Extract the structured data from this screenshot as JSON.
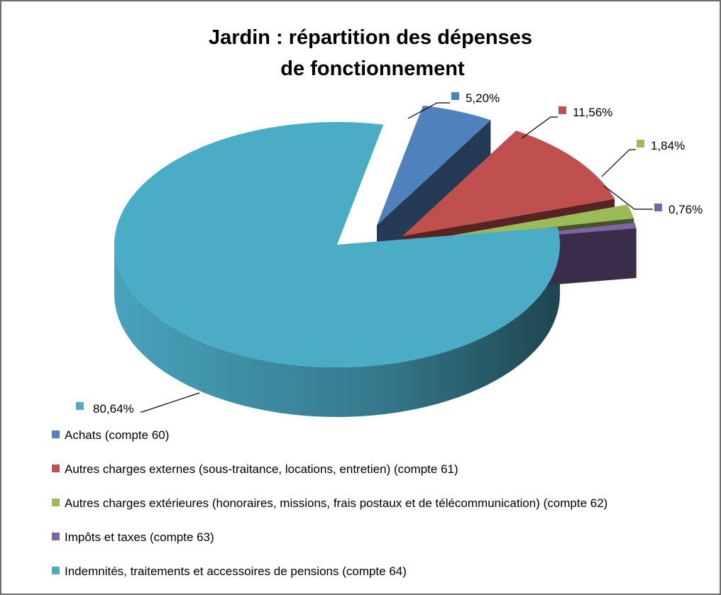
{
  "chart_data": {
    "type": "pie",
    "title_lines": [
      "Jardin : répartition des dépenses",
      "de fonctionnement"
    ],
    "slices": [
      {
        "label": "Achats (compte 60)",
        "value": 5.2,
        "display": "5,20%",
        "color": "#4F81BD"
      },
      {
        "label": "Autres charges externes (sous-traitance, locations, entretien) (compte 61)",
        "value": 11.56,
        "display": "11,56%",
        "color": "#C0504D"
      },
      {
        "label": "Autres charges extérieures (honoraires, missions, frais postaux et de télécommunication) (compte 62)",
        "value": 1.84,
        "display": "1,84%",
        "color": "#9BBB59"
      },
      {
        "label": "Impôts et taxes (compte 63)",
        "value": 0.76,
        "display": "0,76%",
        "color": "#8064A2"
      },
      {
        "label": "Indemnités, traitements et accessoires de pensions (compte 64)",
        "value": 80.64,
        "display": "80,64%",
        "color": "#4BACC6"
      }
    ],
    "legend_position": "bottom",
    "style": "3d-exploded"
  }
}
